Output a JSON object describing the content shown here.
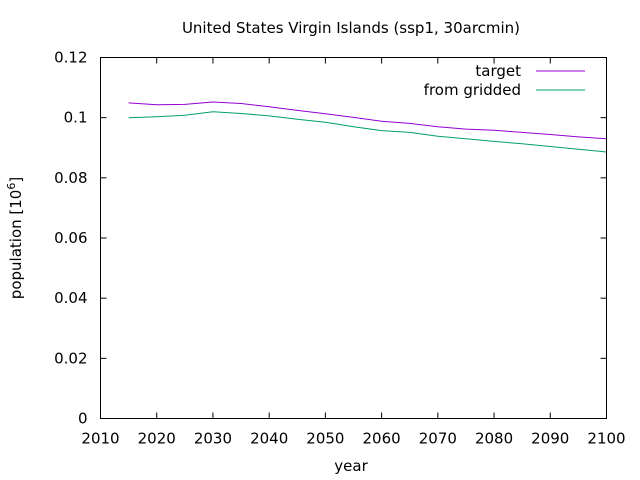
{
  "chart_data": {
    "type": "line",
    "title": "United States Virgin Islands (ssp1, 30arcmin)",
    "xlabel": "year",
    "ylabel": "population [10",
    "ylabel_sup": "6",
    "ylabel_end": "]",
    "xlim": [
      2010,
      2100
    ],
    "ylim": [
      0,
      0.12
    ],
    "xticks": [
      2010,
      2020,
      2030,
      2040,
      2050,
      2060,
      2070,
      2080,
      2090,
      2100
    ],
    "xtick_labels": [
      "2010",
      "2020",
      "2030",
      "2040",
      "2050",
      "2060",
      "2070",
      "2080",
      "2090",
      "2100"
    ],
    "yticks": [
      0,
      0.02,
      0.04,
      0.06,
      0.08,
      0.1,
      0.12
    ],
    "ytick_labels": [
      "0",
      "0.02",
      "0.04",
      "0.06",
      "0.08",
      "0.1",
      "0.12"
    ],
    "grid": false,
    "legend_position": "top-right",
    "x": [
      2015,
      2020,
      2025,
      2030,
      2035,
      2040,
      2045,
      2050,
      2055,
      2060,
      2065,
      2070,
      2075,
      2080,
      2085,
      2090,
      2095,
      2100
    ],
    "series": [
      {
        "name": "target",
        "color": "#9400d3",
        "values": [
          0.1049,
          0.1043,
          0.1044,
          0.1052,
          0.1047,
          0.1036,
          0.1024,
          0.1013,
          0.1001,
          0.0988,
          0.0981,
          0.097,
          0.0962,
          0.0958,
          0.0951,
          0.0944,
          0.0936,
          0.093
        ]
      },
      {
        "name": "from gridded",
        "color": "#009e73",
        "values": [
          0.1,
          0.1003,
          0.1008,
          0.102,
          0.1014,
          0.1006,
          0.0995,
          0.0985,
          0.097,
          0.0957,
          0.0951,
          0.0938,
          0.093,
          0.0921,
          0.0913,
          0.0904,
          0.0895,
          0.0886
        ]
      }
    ]
  }
}
